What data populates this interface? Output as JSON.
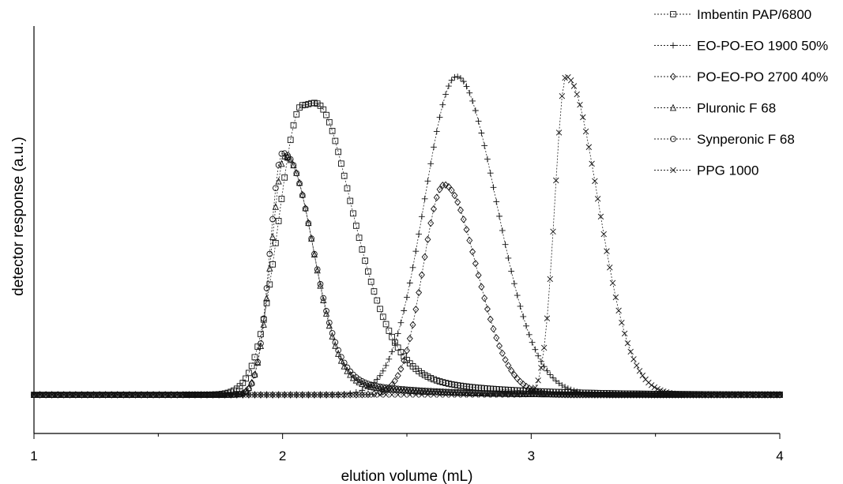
{
  "chart_data": {
    "type": "line",
    "title": "",
    "xlabel": "elution volume (mL)",
    "ylabel": "detector response (a.u.)",
    "xlim": [
      1,
      4
    ],
    "ylim": [
      -0.1,
      1.2
    ],
    "x_ticks": [
      "1",
      "2",
      "3",
      "4"
    ],
    "grid": false,
    "legend_position": "top-right",
    "series": [
      {
        "name": "Imbentin PAP/6800",
        "marker": "square",
        "peak_x": 2.08,
        "peak_y": 0.91,
        "width_left": 0.095,
        "width_right": 0.18,
        "tail": 0.18,
        "tail_decay": 0.35,
        "start_x": 1.6
      },
      {
        "name": "EO-PO-EO 1900 50%",
        "marker": "plus",
        "peak_x": 2.7,
        "peak_y": 1.0,
        "width_left": 0.13,
        "width_right": 0.16,
        "tail": 0.0,
        "tail_decay": 0.3,
        "start_x": 2.35
      },
      {
        "name": "PO-EO-PO 2700 40%",
        "marker": "diamond",
        "peak_x": 2.65,
        "peak_y": 0.66,
        "width_left": 0.085,
        "width_right": 0.13,
        "tail": 0.0,
        "tail_decay": 0.3,
        "start_x": 2.4
      },
      {
        "name": "Pluronic F 68",
        "marker": "triangle",
        "peak_x": 2.01,
        "peak_y": 0.75,
        "width_left": 0.055,
        "width_right": 0.105,
        "tail": 0.1,
        "tail_decay": 0.28,
        "start_x": 1.6
      },
      {
        "name": "Synperonic F 68",
        "marker": "circle",
        "peak_x": 2.0,
        "peak_y": 0.76,
        "width_left": 0.05,
        "width_right": 0.11,
        "tail": 0.13,
        "tail_decay": 0.28,
        "start_x": 1.6
      },
      {
        "name": "PPG 1000",
        "marker": "x",
        "peak_x": 3.14,
        "peak_y": 1.0,
        "width_left": 0.045,
        "width_right": 0.13,
        "tail": 0.0,
        "tail_decay": 0.3,
        "start_x": 3.0
      }
    ]
  }
}
